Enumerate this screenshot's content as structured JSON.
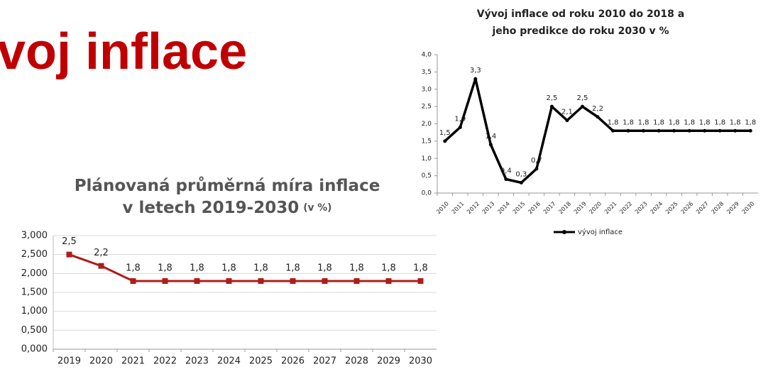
{
  "heading": "voj inflace",
  "chart_data": [
    {
      "type": "line",
      "title": [
        "Vývoj inflace od roku 2010 do 2018 a",
        "jeho predikce do roku 2030 v %"
      ],
      "categories": [
        "2010",
        "2011",
        "2012",
        "2013",
        "2014",
        "2015",
        "2016",
        "2017",
        "2018",
        "2019",
        "2020",
        "2021",
        "2022",
        "2023",
        "2024",
        "2025",
        "2026",
        "2027",
        "2028",
        "2029",
        "2030"
      ],
      "series": [
        {
          "name": "vývoj inflace",
          "color": "#000000",
          "values": [
            1.5,
            1.9,
            3.3,
            1.4,
            0.4,
            0.3,
            0.7,
            2.5,
            2.1,
            2.5,
            2.2,
            1.8,
            1.8,
            1.8,
            1.8,
            1.8,
            1.8,
            1.8,
            1.8,
            1.8,
            1.8
          ],
          "value_labels": [
            "1,5",
            "1,9",
            "3,3",
            "1,4",
            "0,4",
            "0,3",
            "0,7",
            "2,5",
            "2,1",
            "2,5",
            "2,2",
            "1,8",
            "1,8",
            "1,8",
            "1,8",
            "1,8",
            "1,8",
            "1,8",
            "1,8",
            "1,8",
            "1,8"
          ]
        }
      ],
      "ylim": [
        0,
        4
      ],
      "yticks": [
        {
          "value": 0,
          "label": "0,0"
        },
        {
          "value": 0.5,
          "label": "0,5"
        },
        {
          "value": 1,
          "label": "1,0"
        },
        {
          "value": 1.5,
          "label": "1,5"
        },
        {
          "value": 2,
          "label": "2,0"
        },
        {
          "value": 2.5,
          "label": "2,5"
        },
        {
          "value": 3,
          "label": "3,0"
        },
        {
          "value": 3.5,
          "label": "3,5"
        },
        {
          "value": 4,
          "label": "4,0"
        }
      ],
      "grid": false,
      "legend": "bottom"
    },
    {
      "type": "line",
      "title": [
        "Plánovaná průměrná míra inflace",
        "v letech 2019-2030"
      ],
      "subtitle": "(v %)",
      "categories": [
        "2019",
        "2020",
        "2021",
        "2022",
        "2023",
        "2024",
        "2025",
        "2026",
        "2027",
        "2028",
        "2029",
        "2030"
      ],
      "values": [
        2.5,
        2.2,
        1.8,
        1.8,
        1.8,
        1.8,
        1.8,
        1.8,
        1.8,
        1.8,
        1.8,
        1.8
      ],
      "value_labels": [
        "2,5",
        "2,2",
        "1,8",
        "1,8",
        "1,8",
        "1,8",
        "1,8",
        "1,8",
        "1,8",
        "1,8",
        "1,8",
        "1,8"
      ],
      "color": "#b01c1c",
      "ylim": [
        0,
        3
      ],
      "yticks": [
        {
          "value": 0,
          "label": "0,000"
        },
        {
          "value": 0.5,
          "label": "0,500"
        },
        {
          "value": 1,
          "label": "1,000"
        },
        {
          "value": 1.5,
          "label": "1,500"
        },
        {
          "value": 2,
          "label": "2,000"
        },
        {
          "value": 2.5,
          "label": "2,500"
        },
        {
          "value": 3,
          "label": "3,000"
        }
      ],
      "grid": true
    }
  ]
}
